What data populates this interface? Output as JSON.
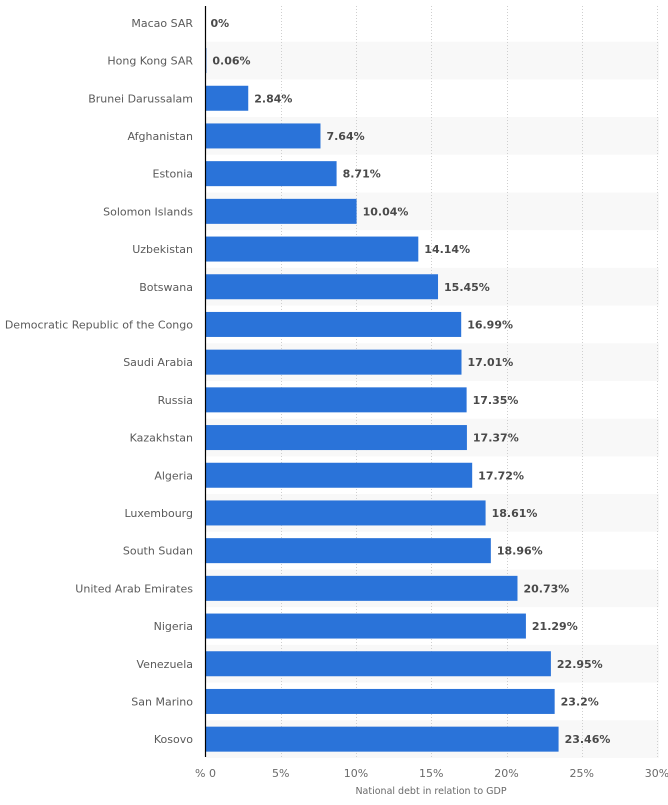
{
  "chart_data": {
    "type": "bar",
    "orientation": "horizontal",
    "title": "",
    "xlabel": "National debt in relation to GDP",
    "ylabel": "",
    "xlim": [
      0,
      30
    ],
    "grid": true,
    "legend": "none",
    "bar_color": "#2a73d9",
    "categories": [
      "Macao SAR",
      "Hong Kong SAR",
      "Brunei Darussalam",
      "Afghanistan",
      "Estonia",
      "Solomon Islands",
      "Uzbekistan",
      "Botswana",
      "Democratic Republic of the Congo",
      "Saudi Arabia",
      "Russia",
      "Kazakhstan",
      "Algeria",
      "Luxembourg",
      "South Sudan",
      "United Arab Emirates",
      "Nigeria",
      "Venezuela",
      "San Marino",
      "Kosovo"
    ],
    "values": [
      0,
      0.06,
      2.84,
      7.64,
      8.71,
      10.04,
      14.14,
      15.45,
      16.99,
      17.01,
      17.35,
      17.37,
      17.72,
      18.61,
      18.96,
      20.73,
      21.29,
      22.95,
      23.2,
      23.46
    ],
    "value_labels": [
      "0%",
      "0.06%",
      "2.84%",
      "7.64%",
      "8.71%",
      "10.04%",
      "14.14%",
      "15.45%",
      "16.99%",
      "17.01%",
      "17.35%",
      "17.37%",
      "17.72%",
      "18.61%",
      "18.96%",
      "20.73%",
      "21.29%",
      "22.95%",
      "23.2%",
      "23.46%"
    ],
    "x_ticks": [
      0,
      5,
      10,
      15,
      20,
      25,
      30
    ],
    "x_tick_labels": [
      "% 0",
      "5%",
      "10%",
      "15%",
      "20%",
      "25%",
      "30%"
    ]
  }
}
